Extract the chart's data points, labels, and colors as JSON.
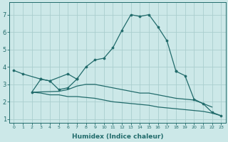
{
  "xlabel": "Humidex (Indice chaleur)",
  "ylabel": "",
  "xlim": [
    -0.5,
    23.5
  ],
  "ylim": [
    0.8,
    7.7
  ],
  "yticks": [
    1,
    2,
    3,
    4,
    5,
    6,
    7
  ],
  "xticks": [
    0,
    1,
    2,
    3,
    4,
    5,
    6,
    7,
    8,
    9,
    10,
    11,
    12,
    13,
    14,
    15,
    16,
    17,
    18,
    19,
    20,
    21,
    22,
    23
  ],
  "background_color": "#cce8e8",
  "grid_color": "#aacece",
  "line_color": "#216b6b",
  "lines": [
    {
      "x": [
        0,
        1,
        3,
        4,
        6,
        7,
        8,
        9,
        10,
        11,
        12,
        13,
        14,
        15,
        16,
        17,
        18
      ],
      "y": [
        3.8,
        3.6,
        3.3,
        3.2,
        3.6,
        3.3,
        4.0,
        4.4,
        4.5,
        5.1,
        6.1,
        7.0,
        6.9,
        7.0,
        6.3,
        5.5,
        3.75
      ],
      "marker": true
    },
    {
      "x": [
        2,
        3,
        4,
        5,
        6,
        7
      ],
      "y": [
        2.55,
        3.3,
        3.2,
        2.7,
        2.8,
        3.3
      ],
      "marker": true
    },
    {
      "x": [
        2,
        5,
        6,
        7,
        8,
        9,
        10,
        11,
        12,
        13,
        14,
        15,
        16,
        17,
        18,
        19,
        20,
        21,
        22
      ],
      "y": [
        2.55,
        2.6,
        2.7,
        2.9,
        3.0,
        3.0,
        2.9,
        2.8,
        2.7,
        2.6,
        2.5,
        2.5,
        2.4,
        2.3,
        2.2,
        2.15,
        2.1,
        1.9,
        1.7
      ],
      "marker": false
    },
    {
      "x": [
        18,
        19,
        20,
        21,
        22,
        23
      ],
      "y": [
        3.75,
        3.5,
        2.15,
        1.9,
        1.4,
        1.2
      ],
      "marker": true
    },
    {
      "x": [
        2,
        3,
        4,
        5,
        6,
        7,
        8,
        9,
        10,
        11,
        12,
        13,
        14,
        15,
        16,
        17,
        18,
        19,
        20,
        21,
        22,
        23
      ],
      "y": [
        2.55,
        2.5,
        2.4,
        2.4,
        2.3,
        2.3,
        2.25,
        2.2,
        2.1,
        2.0,
        1.95,
        1.9,
        1.85,
        1.8,
        1.7,
        1.65,
        1.6,
        1.55,
        1.5,
        1.45,
        1.35,
        1.2
      ],
      "marker": false
    }
  ],
  "xtick_fontsize": 4.5,
  "ytick_fontsize": 6.0,
  "xlabel_fontsize": 6.5,
  "spine_color": "#216b6b",
  "tick_color": "#216b6b",
  "label_color": "#216b6b"
}
